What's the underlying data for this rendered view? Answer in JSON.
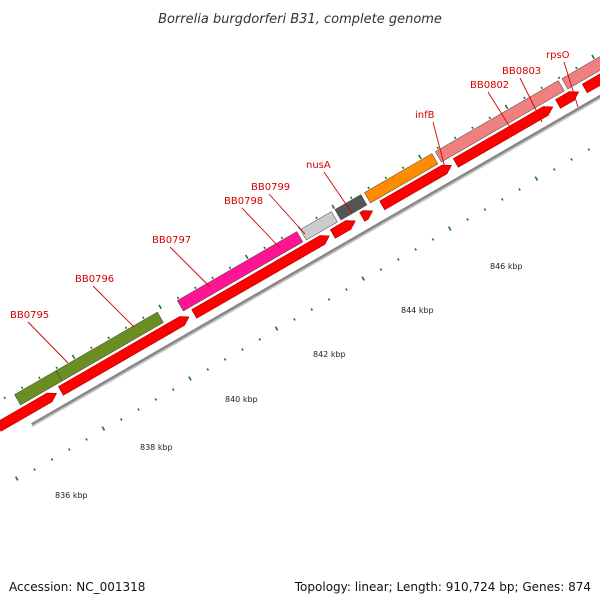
{
  "title": "Borrelia burgdorferi B31, complete genome",
  "footer": {
    "accession": "Accession: NC_001318",
    "summary": "Topology: linear; Length: 910,724 bp; Genes: 874"
  },
  "colors": {
    "cds": "#ff0000",
    "backbone": "#888888",
    "tick": "#1a7a1a",
    "label": "#d40000"
  },
  "scale_labels": [
    "836 kbp",
    "838 kbp",
    "840 kbp",
    "842 kbp",
    "844 kbp",
    "846 kbp"
  ],
  "genes": [
    {
      "name": "BB0795",
      "color": "#6b8e23"
    },
    {
      "name": "BB0796",
      "color": "#6b8e23"
    },
    {
      "name": "BB0797",
      "color": "#ff1493"
    },
    {
      "name": "BB0798",
      "color": "#cccccc"
    },
    {
      "name": "BB0799",
      "color": "#555555"
    },
    {
      "name": "nusA",
      "color": "#ff8c00"
    },
    {
      "name": "infB",
      "color": "#f08080"
    },
    {
      "name": "BB0802",
      "color": "#f08080"
    },
    {
      "name": "BB0803",
      "color": "#f08080"
    },
    {
      "name": "rpsO",
      "color": "#f08080"
    }
  ]
}
